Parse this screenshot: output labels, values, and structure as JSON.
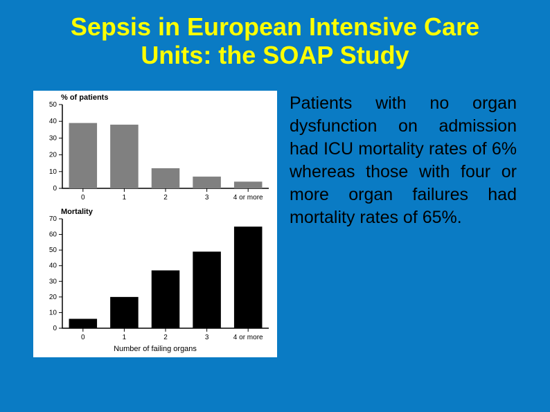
{
  "slide": {
    "title": "Sepsis in European Intensive Care Units: the SOAP Study",
    "body": "Patients with no organ dysfunction on admission had ICU mortality rates of 6% whereas those with four or more organ failures had mortality rates of 65%.",
    "background_color": "#0a7bc4",
    "title_color": "#ffff00",
    "title_fontsize": 36,
    "body_fontsize": 25,
    "body_color": "#000000"
  },
  "chart_patients": {
    "type": "bar",
    "ylabel": "% of patients",
    "categories": [
      "0",
      "1",
      "2",
      "3",
      "4 or more"
    ],
    "values": [
      39,
      38,
      12,
      7,
      4
    ],
    "ylim": [
      0,
      50
    ],
    "ytick_step": 10,
    "bar_color": "#808080",
    "axis_color": "#000000",
    "background_color": "#ffffff",
    "tick_fontsize": 10,
    "label_fontsize": 11,
    "bar_width": 0.68
  },
  "chart_mortality": {
    "type": "bar",
    "ylabel": "Mortality",
    "xlabel": "Number of failing organs",
    "categories": [
      "0",
      "1",
      "2",
      "3",
      "4 or more"
    ],
    "values": [
      6,
      20,
      37,
      49,
      65
    ],
    "ylim": [
      0,
      70
    ],
    "ytick_step": 10,
    "bar_color": "#000000",
    "axis_color": "#000000",
    "background_color": "#ffffff",
    "tick_fontsize": 10,
    "label_fontsize": 11,
    "bar_width": 0.68
  }
}
